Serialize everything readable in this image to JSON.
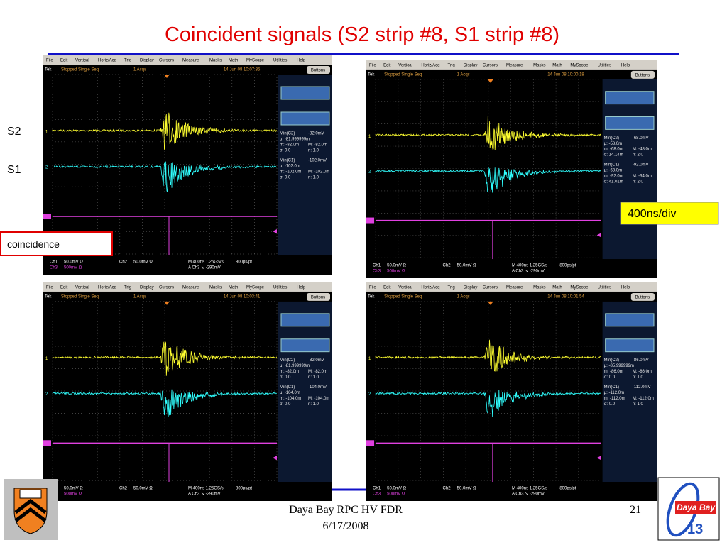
{
  "slide": {
    "title": "Coincident signals (S2 strip #8, S1 strip #8)",
    "labels": {
      "s2": "S2",
      "s1": "S1",
      "coincidence": "coincidence",
      "timebase": "400ns/div"
    },
    "footer": {
      "event": "Daya Bay RPC HV FDR",
      "date": "6/17/2008",
      "page": "21"
    },
    "logo": {
      "name": "Daya Bay",
      "number": "13"
    }
  },
  "scope_common": {
    "menu": [
      "File",
      "Edit",
      "Vertical",
      "Horiz/Acq",
      "Trig",
      "Display",
      "Cursors",
      "Measure",
      "Masks",
      "Math",
      "MyScope",
      "Utilities",
      "Help"
    ],
    "brand": "Tek",
    "mode": "Stopped  Single Seq",
    "acqs": "1 Acqs",
    "button": "Buttons",
    "channel_markers": [
      "1",
      "2"
    ],
    "footer": [
      [
        "Ch1",
        "50.0mV Ω",
        "Ch2",
        "50.0mV Ω",
        "M 400ns 1.25GS/s",
        "800ps/pt"
      ],
      [
        "Ch3",
        "500mV Ω",
        "A  Ch3 ↘ -290mV"
      ]
    ]
  },
  "scopes": [
    {
      "timestamp": "14 Jun 08 10:07:35",
      "measurements": [
        [
          "Min(C2)",
          "-82.0mV"
        ],
        [
          "μ: -81.999999m"
        ],
        [
          "m: -82.0m",
          "M: -82.0m"
        ],
        [
          "σ: 0.0",
          "n: 1.0"
        ],
        [
          "Min(C1)",
          "-102.0mV"
        ],
        [
          "μ: -102.0m"
        ],
        [
          "m: -102.0m",
          "M: -102.0m"
        ],
        [
          "σ: 0.0",
          "n: 1.0"
        ]
      ]
    },
    {
      "timestamp": "14 Jun 08 10:00:18",
      "measurements": [
        [
          "Min(C2)",
          "-68.0mV"
        ],
        [
          "μ: -58.0m"
        ],
        [
          "m: -68.0m",
          "M: -48.0m"
        ],
        [
          "σ: 14.14m",
          "n: 2.0"
        ],
        [
          "Min(C1)",
          "-92.0mV"
        ],
        [
          "μ: -63.0m"
        ],
        [
          "m: -92.0m",
          "M: -34.0m"
        ],
        [
          "σ: 41.01m",
          "n: 2.0"
        ]
      ]
    },
    {
      "timestamp": "14 Jun 08 10:03:41",
      "measurements": [
        [
          "Min(C2)",
          "-82.0mV"
        ],
        [
          "μ: -81.999999m"
        ],
        [
          "m: -82.0m",
          "M: -82.0m"
        ],
        [
          "σ: 0.0",
          "n: 1.0"
        ],
        [
          "Min(C1)",
          "-104.0mV"
        ],
        [
          "μ: -104.0m"
        ],
        [
          "m: -104.0m",
          "M: -104.0m"
        ],
        [
          "σ: 0.0",
          "n: 1.0"
        ]
      ]
    },
    {
      "timestamp": "14 Jun 08 10:01:54",
      "measurements": [
        [
          "Min(C2)",
          "-86.0mV"
        ],
        [
          "μ: -85.999999m"
        ],
        [
          "m: -86.0m",
          "M: -86.0m"
        ],
        [
          "σ: 0.0",
          "n: 1.0"
        ],
        [
          "Min(C1)",
          "-112.0mV"
        ],
        [
          "μ: -112.0m"
        ],
        [
          "m: -112.0m",
          "M: -112.0m"
        ],
        [
          "σ: 0.0",
          "n: 1.0"
        ]
      ]
    }
  ]
}
